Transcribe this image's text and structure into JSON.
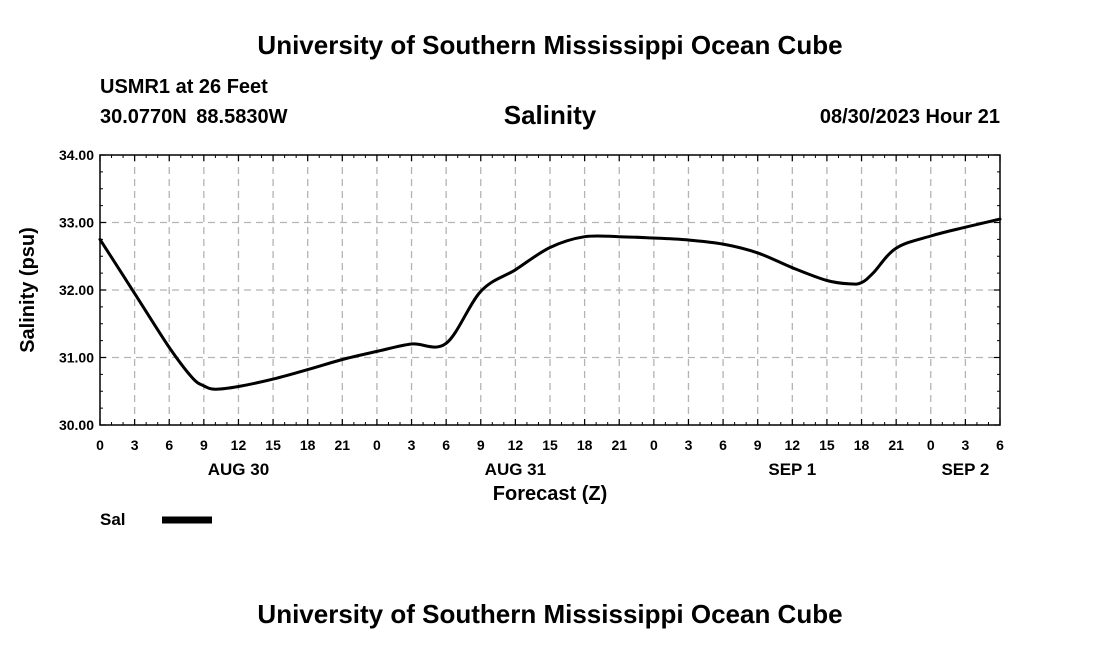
{
  "header": {
    "title": "University of Southern Mississippi Ocean Cube",
    "station": "USMR1 at 26 Feet",
    "coordinates": "30.0770N  88.5830W",
    "parameter": "Salinity",
    "datetime": "08/30/2023 Hour 21"
  },
  "footer": {
    "title": "University of Southern Mississippi Ocean Cube"
  },
  "chart_data": {
    "type": "line",
    "title": "Salinity",
    "xlabel": "Forecast (Z)",
    "ylabel": "Salinity (psu)",
    "ylim": [
      30.0,
      34.0
    ],
    "yticks": [
      "30.00",
      "31.00",
      "32.00",
      "33.00",
      "34.00"
    ],
    "xlim": [
      0,
      78
    ],
    "xtick_hours": [
      0,
      3,
      6,
      9,
      12,
      15,
      18,
      21,
      24,
      27,
      30,
      33,
      36,
      39,
      42,
      45,
      48,
      51,
      54,
      57,
      60,
      63,
      66,
      69,
      72,
      75,
      78
    ],
    "xtick_labels": [
      "0",
      "3",
      "6",
      "9",
      "12",
      "15",
      "18",
      "21",
      "0",
      "3",
      "6",
      "9",
      "12",
      "15",
      "18",
      "21",
      "0",
      "3",
      "6",
      "9",
      "12",
      "15",
      "18",
      "21",
      "0",
      "3",
      "6"
    ],
    "day_labels": [
      {
        "label": "AUG 30",
        "hour": 12
      },
      {
        "label": "AUG 31",
        "hour": 36
      },
      {
        "label": "SEP 1",
        "hour": 60
      },
      {
        "label": "SEP 2",
        "hour": 75
      }
    ],
    "grid": true,
    "legend": {
      "position": "bottom-left"
    },
    "series": [
      {
        "name": "Sal",
        "color": "#000000",
        "x": [
          0,
          3,
          6,
          8,
          9,
          10,
          12,
          15,
          18,
          21,
          24,
          27,
          30,
          33,
          36,
          39,
          42,
          45,
          48,
          51,
          54,
          57,
          60,
          63,
          65,
          66,
          67,
          69,
          72,
          75,
          78
        ],
        "values": [
          32.75,
          31.95,
          31.15,
          30.7,
          30.58,
          30.53,
          30.57,
          30.68,
          30.82,
          30.97,
          31.09,
          31.2,
          31.21,
          31.98,
          32.3,
          32.63,
          32.79,
          32.79,
          32.77,
          32.74,
          32.68,
          32.55,
          32.33,
          32.14,
          32.09,
          32.11,
          32.25,
          32.62,
          32.8,
          32.93,
          33.05
        ]
      }
    ]
  }
}
